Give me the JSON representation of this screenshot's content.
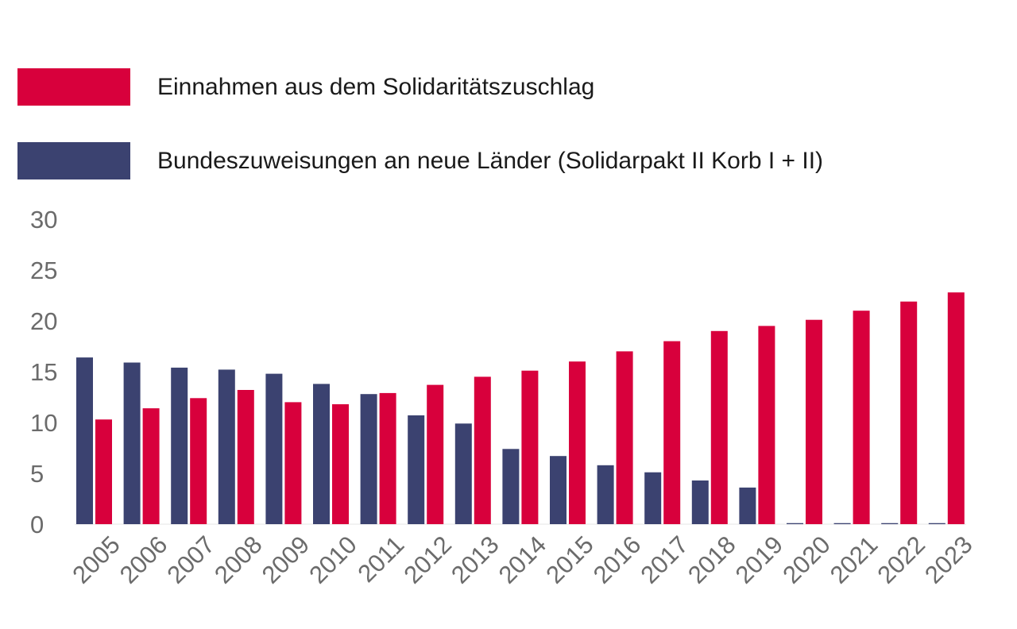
{
  "chart_data": {
    "type": "bar",
    "categories": [
      "2005",
      "2006",
      "2007",
      "2008",
      "2009",
      "2010",
      "2011",
      "2012",
      "2013",
      "2014",
      "2015",
      "2016",
      "2017",
      "2018",
      "2019",
      "2020",
      "2021",
      "2022",
      "2023"
    ],
    "series": [
      {
        "name": "Bundeszuweisungen an neue Länder (Solidarpakt II Korb I + II)",
        "color": "#3b4270",
        "values": [
          16.4,
          15.9,
          15.4,
          15.2,
          14.8,
          13.8,
          12.8,
          10.7,
          9.9,
          7.4,
          6.7,
          5.8,
          5.1,
          4.3,
          3.6,
          0.1,
          0.1,
          0.1,
          0.1
        ]
      },
      {
        "name": "Einnahmen aus dem Solidaritätszuschlag",
        "color": "#d8003c",
        "values": [
          10.3,
          11.4,
          12.4,
          13.2,
          12.0,
          11.8,
          12.9,
          13.7,
          14.5,
          15.1,
          16.0,
          17.0,
          18.0,
          19.0,
          19.5,
          20.1,
          21.0,
          21.9,
          22.8
        ]
      }
    ],
    "legend": [
      {
        "label": "Einnahmen aus dem Solidaritätszuschlag",
        "color": "#d8003c"
      },
      {
        "label": "Bundeszuweisungen an neue Länder (Solidarpakt II Korb I + II)",
        "color": "#3b4270"
      }
    ],
    "legend_position": "top-left",
    "title": "",
    "xlabel": "",
    "ylabel": "",
    "ylim": [
      0,
      30
    ],
    "yticks": [
      "0",
      "5",
      "10",
      "15",
      "20",
      "25",
      "30"
    ],
    "grid": false
  }
}
